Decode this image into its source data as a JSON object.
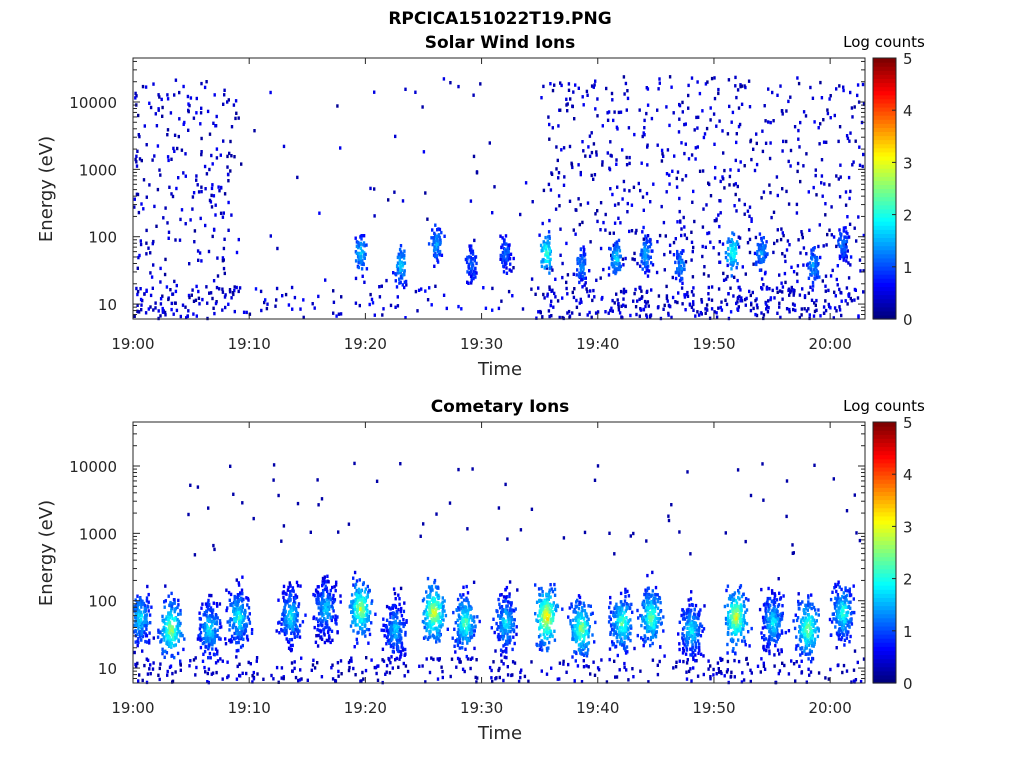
{
  "figure": {
    "filename_title": "RPCICA151022T19.PNG"
  },
  "chart_data": [
    {
      "type": "heatmap",
      "title": "Solar Wind Ions",
      "xlabel": "Time",
      "ylabel": "Energy (eV)",
      "x_ticks": [
        "19:00",
        "19:10",
        "19:20",
        "19:30",
        "19:40",
        "19:50",
        "20:00"
      ],
      "x_range": [
        "19:00",
        "20:03"
      ],
      "y_scale": "log",
      "y_ticks": [
        10,
        100,
        1000,
        10000
      ],
      "y_range": [
        6,
        45000
      ],
      "colorbar": {
        "label": "Log counts",
        "range": [
          0,
          5
        ],
        "ticks": [
          0,
          1,
          2,
          3,
          4,
          5
        ],
        "colormap": "jet"
      },
      "bursts": [
        {
          "t": 19.5,
          "peak_energy": 60,
          "max_log": 1.7
        },
        {
          "t": 23.0,
          "peak_energy": 40,
          "max_log": 1.8
        },
        {
          "t": 26.0,
          "peak_energy": 80,
          "max_log": 1.6
        },
        {
          "t": 29.0,
          "peak_energy": 40,
          "max_log": 1.2
        },
        {
          "t": 32.0,
          "peak_energy": 60,
          "max_log": 1.2
        },
        {
          "t": 35.5,
          "peak_energy": 60,
          "max_log": 2.3
        },
        {
          "t": 38.5,
          "peak_energy": 40,
          "max_log": 1.4
        },
        {
          "t": 41.5,
          "peak_energy": 50,
          "max_log": 1.8
        },
        {
          "t": 44.0,
          "peak_energy": 60,
          "max_log": 1.6
        },
        {
          "t": 47.0,
          "peak_energy": 40,
          "max_log": 1.4
        },
        {
          "t": 51.5,
          "peak_energy": 60,
          "max_log": 2.2
        },
        {
          "t": 54.0,
          "peak_energy": 60,
          "max_log": 1.5
        },
        {
          "t": 58.5,
          "peak_energy": 40,
          "max_log": 1.5
        },
        {
          "t": 61.0,
          "peak_energy": 80,
          "max_log": 1.3
        }
      ],
      "note_values": "background counts scattered 10–30000 eV before 19:09 and after 19:35"
    },
    {
      "type": "heatmap",
      "title": "Cometary Ions",
      "xlabel": "Time",
      "ylabel": "Energy (eV)",
      "x_ticks": [
        "19:00",
        "19:10",
        "19:20",
        "19:30",
        "19:40",
        "19:50",
        "20:00"
      ],
      "x_range": [
        "19:00",
        "20:03"
      ],
      "y_scale": "log",
      "y_ticks": [
        10,
        100,
        1000,
        10000
      ],
      "y_range": [
        6,
        45000
      ],
      "colorbar": {
        "label": "Log counts",
        "range": [
          0,
          5
        ],
        "ticks": [
          0,
          1,
          2,
          3,
          4,
          5
        ],
        "colormap": "jet"
      },
      "bursts": [
        {
          "t": 0.5,
          "peak_energy": 60,
          "max_log": 2.0
        },
        {
          "t": 3.2,
          "peak_energy": 40,
          "max_log": 2.9
        },
        {
          "t": 6.5,
          "peak_energy": 40,
          "max_log": 2.0
        },
        {
          "t": 9.0,
          "peak_energy": 60,
          "max_log": 2.2
        },
        {
          "t": 13.5,
          "peak_energy": 60,
          "max_log": 2.0
        },
        {
          "t": 16.5,
          "peak_energy": 80,
          "max_log": 1.8
        },
        {
          "t": 19.5,
          "peak_energy": 80,
          "max_log": 3.0
        },
        {
          "t": 22.5,
          "peak_energy": 40,
          "max_log": 1.8
        },
        {
          "t": 25.8,
          "peak_energy": 70,
          "max_log": 3.2
        },
        {
          "t": 28.5,
          "peak_energy": 50,
          "max_log": 2.5
        },
        {
          "t": 32.0,
          "peak_energy": 50,
          "max_log": 2.0
        },
        {
          "t": 35.5,
          "peak_energy": 60,
          "max_log": 3.5
        },
        {
          "t": 38.5,
          "peak_energy": 40,
          "max_log": 2.8
        },
        {
          "t": 42.0,
          "peak_energy": 50,
          "max_log": 2.5
        },
        {
          "t": 44.5,
          "peak_energy": 60,
          "max_log": 2.6
        },
        {
          "t": 48.0,
          "peak_energy": 40,
          "max_log": 2.0
        },
        {
          "t": 51.8,
          "peak_energy": 60,
          "max_log": 3.2
        },
        {
          "t": 55.0,
          "peak_energy": 50,
          "max_log": 2.0
        },
        {
          "t": 58.0,
          "peak_energy": 40,
          "max_log": 2.8
        },
        {
          "t": 61.0,
          "peak_energy": 70,
          "max_log": 2.3
        }
      ]
    }
  ]
}
